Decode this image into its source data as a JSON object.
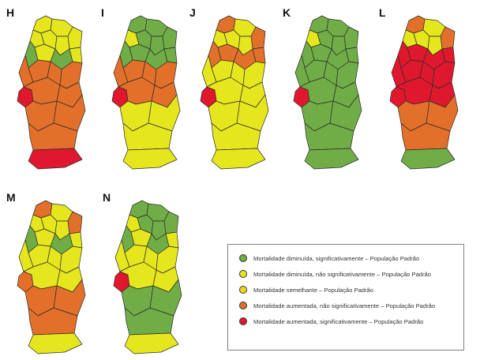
{
  "colors": {
    "sig_decreased": "#70ad47",
    "nonsig_decreased": "#e6e61e",
    "similar": "#f7d41f",
    "nonsig_increased": "#e3702a",
    "sig_increased": "#e0182d"
  },
  "maps": [
    {
      "letter": "H",
      "top": "yellow",
      "upper_mid": "mixed-green",
      "lisbon": "sig_increased",
      "center": "nonsig_increased",
      "south": "nonsig_increased",
      "algarve": "sig_increased"
    },
    {
      "letter": "I",
      "top": "green",
      "upper_mid": "green",
      "lisbon": "sig_increased",
      "center": "nonsig_increased",
      "south": "nonsig_decreased",
      "algarve": "nonsig_decreased"
    },
    {
      "letter": "J",
      "top": "yellow",
      "upper_mid": "mixed-orange",
      "lisbon": "sig_increased",
      "center": "nonsig_decreased",
      "south": "nonsig_decreased",
      "algarve": "nonsig_decreased"
    },
    {
      "letter": "K",
      "top": "green",
      "upper_mid": "green",
      "lisbon": "sig_increased",
      "center": "sig_decreased",
      "south": "sig_decreased",
      "algarve": "sig_decreased"
    },
    {
      "letter": "L",
      "top": "mixed-orange",
      "upper_mid": "sig_increased",
      "lisbon": "sig_increased",
      "center": "sig_increased",
      "south": "nonsig_increased",
      "algarve": "sig_decreased"
    },
    {
      "letter": "M",
      "top": "mixed-orange",
      "upper_mid": "mixed-green",
      "lisbon": "nonsig_increased",
      "center": "nonsig_decreased",
      "south": "nonsig_increased",
      "algarve": "nonsig_decreased"
    },
    {
      "letter": "N",
      "top": "green",
      "upper_mid": "mixed-green",
      "lisbon": "sig_increased",
      "center": "nonsig_decreased",
      "south": "sig_decreased",
      "algarve": "nonsig_decreased"
    }
  ],
  "legend": [
    {
      "label": "Mortalidade diminuída, significativamente – População Padrão",
      "color_key": "sig_decreased"
    },
    {
      "label": "Mortalidade diminuída, não significativamente – População Padrão",
      "color_key": "nonsig_decreased"
    },
    {
      "label": "Mortalidade semelhante – População Padrão",
      "color_key": "similar"
    },
    {
      "label": "Mortalidade aumentada, não significativamente – População Padrão",
      "color_key": "nonsig_increased"
    },
    {
      "label": "Mortalidade aumentada, significativamente – População Padrão",
      "color_key": "sig_increased"
    }
  ]
}
